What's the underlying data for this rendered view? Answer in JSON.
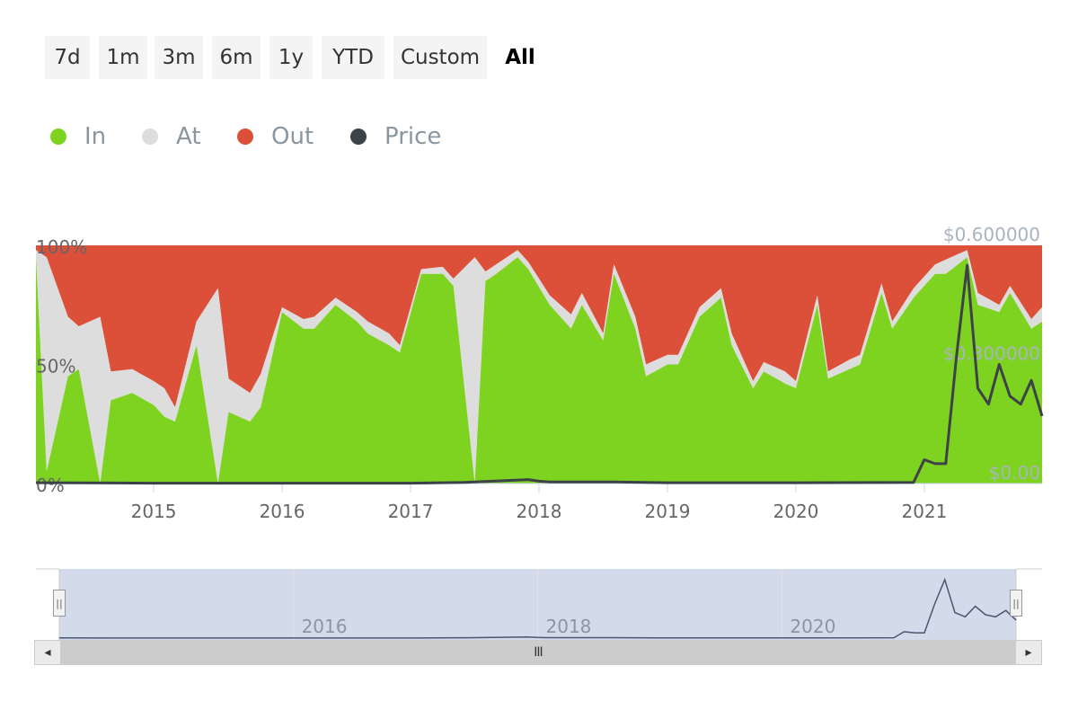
{
  "range_selector": {
    "buttons": [
      {
        "label": "7d",
        "active": false
      },
      {
        "label": "1m",
        "active": false
      },
      {
        "label": "3m",
        "active": false
      },
      {
        "label": "6m",
        "active": false
      },
      {
        "label": "1y",
        "active": false
      },
      {
        "label": "YTD",
        "active": false
      },
      {
        "label": "Custom",
        "active": false
      },
      {
        "label": "All",
        "active": true
      }
    ]
  },
  "legend": {
    "items": [
      {
        "label": "In",
        "color": "#7ed321"
      },
      {
        "label": "At",
        "color": "#dddddd"
      },
      {
        "label": "Out",
        "color": "#dc4f39"
      },
      {
        "label": "Price",
        "color": "#3d4148"
      }
    ]
  },
  "colors": {
    "in": "#7ed321",
    "at": "#dddddd",
    "out": "#dc4f39",
    "price": "#3d4148",
    "navigator_fill": "#d3dbeb",
    "navigator_line": "#4a5670",
    "scrollbar_track": "#cccccc"
  },
  "chart_data": {
    "type": "area",
    "stacking": "percent",
    "left_axis": {
      "ticks": [
        "0%",
        "50%",
        "100%"
      ],
      "range": [
        0,
        100
      ]
    },
    "right_axis": {
      "ticks": [
        "$0.00",
        "$0.300000",
        "$0.600000"
      ],
      "range": [
        0,
        0.6
      ]
    },
    "x_axis": {
      "ticks": [
        "2015",
        "2016",
        "2017",
        "2018",
        "2019",
        "2020",
        "2021"
      ],
      "range": [
        "2014-02",
        "2021-12"
      ]
    },
    "series": [
      {
        "name": "In",
        "color": "#7ed321",
        "x": [
          "2014-02",
          "2014-03",
          "2014-05",
          "2014-06",
          "2014-08",
          "2014-09",
          "2014-11",
          "2015-01",
          "2015-02",
          "2015-03",
          "2015-05",
          "2015-07",
          "2015-08",
          "2015-10",
          "2015-11",
          "2016-01",
          "2016-03",
          "2016-04",
          "2016-06",
          "2016-08",
          "2016-09",
          "2016-11",
          "2016-12",
          "2017-02",
          "2017-04",
          "2017-05",
          "2017-07",
          "2017-08",
          "2017-09",
          "2017-11",
          "2017-12",
          "2018-02",
          "2018-04",
          "2018-05",
          "2018-07",
          "2018-08",
          "2018-10",
          "2018-11",
          "2019-01",
          "2019-02",
          "2019-04",
          "2019-06",
          "2019-07",
          "2019-09",
          "2019-10",
          "2019-12",
          "2020-01",
          "2020-03",
          "2020-04",
          "2020-06",
          "2020-07",
          "2020-09",
          "2020-10",
          "2020-12",
          "2021-02",
          "2021-03",
          "2021-05",
          "2021-06",
          "2021-08",
          "2021-09",
          "2021-11",
          "2021-12"
        ],
        "values": [
          95,
          5,
          45,
          48,
          0,
          35,
          38,
          33,
          28,
          26,
          58,
          0,
          30,
          26,
          32,
          72,
          65,
          65,
          75,
          68,
          63,
          58,
          55,
          88,
          88,
          83,
          0,
          85,
          88,
          95,
          90,
          75,
          65,
          75,
          60,
          88,
          65,
          45,
          50,
          50,
          70,
          78,
          58,
          40,
          47,
          42,
          40,
          75,
          44,
          48,
          50,
          80,
          65,
          78,
          88,
          88,
          95,
          75,
          72,
          80,
          65,
          68
        ]
      },
      {
        "name": "At",
        "color": "#dddddd",
        "x": [
          "2014-02",
          "2014-03",
          "2014-05",
          "2014-06",
          "2014-08",
          "2014-09",
          "2014-11",
          "2015-01",
          "2015-02",
          "2015-03",
          "2015-05",
          "2015-07",
          "2015-08",
          "2015-10",
          "2015-11",
          "2016-01",
          "2016-03",
          "2016-04",
          "2016-06",
          "2016-08",
          "2016-09",
          "2016-11",
          "2016-12",
          "2017-02",
          "2017-04",
          "2017-05",
          "2017-07",
          "2017-08",
          "2017-09",
          "2017-11",
          "2017-12",
          "2018-02",
          "2018-04",
          "2018-05",
          "2018-07",
          "2018-08",
          "2018-10",
          "2018-11",
          "2019-01",
          "2019-02",
          "2019-04",
          "2019-06",
          "2019-07",
          "2019-09",
          "2019-10",
          "2019-12",
          "2020-01",
          "2020-03",
          "2020-04",
          "2020-06",
          "2020-07",
          "2020-09",
          "2020-10",
          "2020-12",
          "2021-02",
          "2021-03",
          "2021-05",
          "2021-06",
          "2021-08",
          "2021-09",
          "2021-11",
          "2021-12"
        ],
        "values": [
          3,
          90,
          25,
          18,
          70,
          12,
          10,
          10,
          12,
          6,
          10,
          82,
          14,
          12,
          14,
          2,
          4,
          5,
          3,
          4,
          5,
          5,
          3,
          2,
          3,
          3,
          95,
          4,
          4,
          3,
          3,
          4,
          6,
          5,
          3,
          4,
          5,
          5,
          4,
          4,
          4,
          4,
          5,
          3,
          4,
          5,
          3,
          4,
          3,
          4,
          4,
          4,
          3,
          4,
          4,
          6,
          3,
          5,
          3,
          3,
          4,
          6
        ]
      },
      {
        "name": "Out",
        "color": "#dc4f39",
        "x": [
          "2014-02",
          "2014-03",
          "2014-05",
          "2014-06",
          "2014-08",
          "2014-09",
          "2014-11",
          "2015-01",
          "2015-02",
          "2015-03",
          "2015-05",
          "2015-07",
          "2015-08",
          "2015-10",
          "2015-11",
          "2016-01",
          "2016-03",
          "2016-04",
          "2016-06",
          "2016-08",
          "2016-09",
          "2016-11",
          "2016-12",
          "2017-02",
          "2017-04",
          "2017-05",
          "2017-07",
          "2017-08",
          "2017-09",
          "2017-11",
          "2017-12",
          "2018-02",
          "2018-04",
          "2018-05",
          "2018-07",
          "2018-08",
          "2018-10",
          "2018-11",
          "2019-01",
          "2019-02",
          "2019-04",
          "2019-06",
          "2019-07",
          "2019-09",
          "2019-10",
          "2019-12",
          "2020-01",
          "2020-03",
          "2020-04",
          "2020-06",
          "2020-07",
          "2020-09",
          "2020-10",
          "2020-12",
          "2021-02",
          "2021-03",
          "2021-05",
          "2021-06",
          "2021-08",
          "2021-09",
          "2021-11",
          "2021-12"
        ],
        "values": [
          2,
          5,
          30,
          34,
          30,
          53,
          52,
          57,
          60,
          68,
          32,
          18,
          56,
          62,
          54,
          26,
          31,
          30,
          22,
          28,
          32,
          37,
          42,
          10,
          9,
          14,
          5,
          11,
          8,
          2,
          7,
          21,
          29,
          20,
          37,
          8,
          30,
          50,
          46,
          46,
          26,
          18,
          37,
          57,
          49,
          53,
          57,
          21,
          53,
          48,
          46,
          16,
          32,
          18,
          8,
          6,
          2,
          20,
          25,
          17,
          31,
          26
        ]
      },
      {
        "name": "Price",
        "color": "#3d4148",
        "axis": "right",
        "x": [
          "2014-02",
          "2015-01",
          "2016-01",
          "2017-01",
          "2017-06",
          "2017-12",
          "2018-01",
          "2018-02",
          "2018-04",
          "2018-08",
          "2019-01",
          "2020-01",
          "2020-12",
          "2021-01",
          "2021-02",
          "2021-03",
          "2021-04",
          "2021-05",
          "2021-06",
          "2021-07",
          "2021-08",
          "2021-09",
          "2021-10",
          "2021-11",
          "2021-12"
        ],
        "values": [
          0.002,
          0.001,
          0.001,
          0.001,
          0.003,
          0.01,
          0.006,
          0.004,
          0.004,
          0.004,
          0.002,
          0.002,
          0.003,
          0.06,
          0.05,
          0.05,
          0.32,
          0.55,
          0.24,
          0.2,
          0.3,
          0.22,
          0.2,
          0.26,
          0.17
        ]
      }
    ],
    "navigator": {
      "x_ticks": [
        "2016",
        "2018",
        "2020"
      ],
      "selected_range": [
        "2014-02",
        "2021-12"
      ]
    }
  },
  "scrollbar": {
    "left_arrow": "◂",
    "right_arrow": "▸",
    "grip": "III",
    "handle_grip": "||"
  }
}
